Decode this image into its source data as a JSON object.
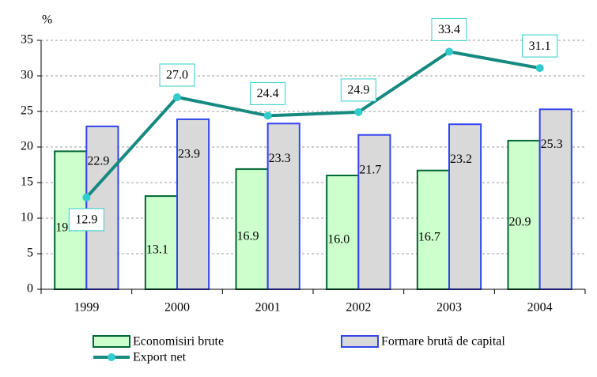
{
  "chart_data": {
    "type": "bar_line",
    "y_label": "%",
    "categories": [
      "1999",
      "2000",
      "2001",
      "2002",
      "2003",
      "2004"
    ],
    "series": [
      {
        "name": "Economisiri brute",
        "type": "bar",
        "color": "#ccffcc",
        "stroke": "#006633",
        "values": [
          19.4,
          13.1,
          16.9,
          16.0,
          16.7,
          20.9
        ],
        "value_labels": [
          "19.4",
          "13.1",
          "16.9",
          "16.0",
          "16.7",
          "20.9"
        ]
      },
      {
        "name": "Formare brută de capital",
        "type": "bar",
        "color": "#d9d9d9",
        "stroke": "#3344ee",
        "values": [
          22.9,
          23.9,
          23.3,
          21.7,
          23.2,
          25.3
        ],
        "value_labels": [
          "22.9",
          "23.9",
          "23.3",
          "21.7",
          "23.2",
          "25.3"
        ]
      },
      {
        "name": "Export net",
        "type": "line",
        "color": "#168a80",
        "marker_color": "#33cccc",
        "values": [
          12.9,
          27.0,
          24.4,
          24.9,
          33.4,
          31.1
        ],
        "value_labels": [
          "12.9",
          "27.0",
          "24.4",
          "24.9",
          "33.4",
          "31.1"
        ]
      }
    ],
    "ylim": [
      0,
      35
    ],
    "yticks": [
      0,
      5,
      10,
      15,
      20,
      25,
      30,
      35
    ],
    "grid": true
  }
}
